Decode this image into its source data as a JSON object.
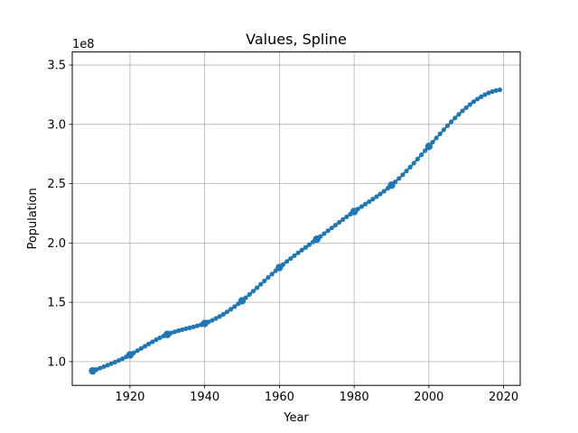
{
  "chart_data": {
    "type": "line",
    "title": "Values, Spline",
    "xlabel": "Year",
    "ylabel": "Population",
    "y_offset_label": "1e8",
    "xlim": [
      1904.55,
      2024.45
    ],
    "ylim": [
      0.8,
      3.61
    ],
    "y_scale": 100000000,
    "grid": true,
    "series_color": "#1f77b4",
    "xticks": [
      1920,
      1940,
      1960,
      1980,
      2000,
      2020
    ],
    "xtick_labels": [
      "1920",
      "1940",
      "1960",
      "1980",
      "2000",
      "2020"
    ],
    "yticks": [
      1.0,
      1.5,
      2.0,
      2.5,
      3.0,
      3.5
    ],
    "ytick_labels": [
      "1.0",
      "1.5",
      "2.0",
      "2.5",
      "3.0",
      "3.5"
    ],
    "series": [
      {
        "kind": "data-points",
        "x": [
          1910,
          1920,
          1930,
          1940,
          1950,
          1960,
          1970,
          1980,
          1990,
          2000
        ],
        "y": [
          0.922,
          1.057,
          1.23,
          1.322,
          1.513,
          1.793,
          2.032,
          2.265,
          2.487,
          2.814
        ]
      },
      {
        "kind": "spline",
        "x_start": 1910,
        "x_end": 2019,
        "x_step": 1
      }
    ]
  }
}
